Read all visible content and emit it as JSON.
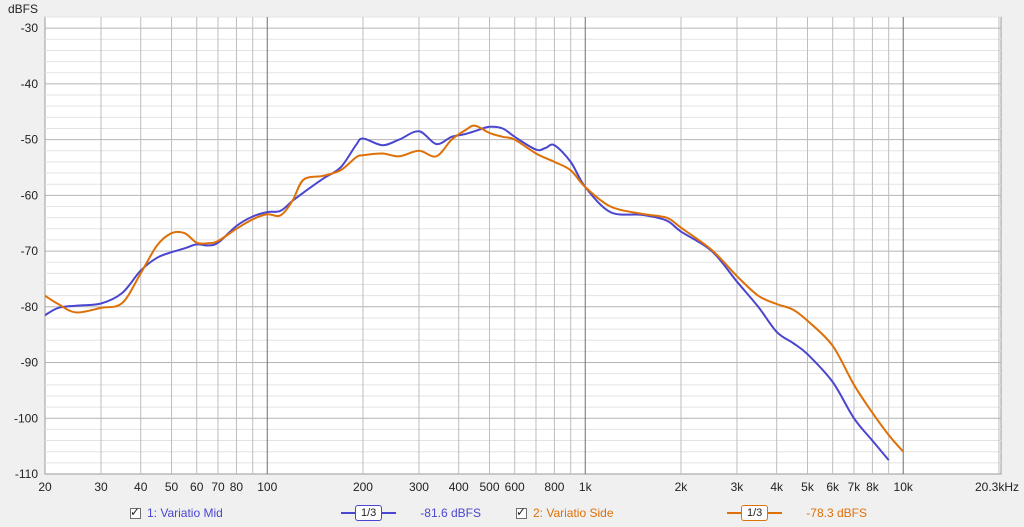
{
  "chart_data": {
    "type": "line",
    "xlabel": "",
    "ylabel": "dBFS",
    "x_scale": "log",
    "xlim": [
      20,
      20300
    ],
    "ylim": [
      -110,
      -28
    ],
    "grid": true,
    "y_ticks": [
      -30,
      -40,
      -50,
      -60,
      -70,
      -80,
      -90,
      -100,
      -110
    ],
    "x_ticks": [
      {
        "f": 20,
        "label": "20"
      },
      {
        "f": 30,
        "label": "30"
      },
      {
        "f": 40,
        "label": "40"
      },
      {
        "f": 50,
        "label": "50"
      },
      {
        "f": 60,
        "label": "60"
      },
      {
        "f": 70,
        "label": "70"
      },
      {
        "f": 80,
        "label": "80"
      },
      {
        "f": 100,
        "label": "100"
      },
      {
        "f": 200,
        "label": "200"
      },
      {
        "f": 300,
        "label": "300"
      },
      {
        "f": 400,
        "label": "400"
      },
      {
        "f": 500,
        "label": "500"
      },
      {
        "f": 600,
        "label": "600"
      },
      {
        "f": 800,
        "label": "800"
      },
      {
        "f": 1000,
        "label": "1k"
      },
      {
        "f": 2000,
        "label": "2k"
      },
      {
        "f": 3000,
        "label": "3k"
      },
      {
        "f": 4000,
        "label": "4k"
      },
      {
        "f": 5000,
        "label": "5k"
      },
      {
        "f": 6000,
        "label": "6k"
      },
      {
        "f": 7000,
        "label": "7k"
      },
      {
        "f": 8000,
        "label": "8k"
      },
      {
        "f": 10000,
        "label": "10k"
      },
      {
        "f": 20300,
        "label": "20.3kHz"
      }
    ],
    "series": [
      {
        "name": "1: Variatio Mid",
        "color": "#4a46d0",
        "x": [
          20,
          22,
          25,
          30,
          35,
          40,
          45,
          50,
          55,
          60,
          65,
          70,
          80,
          90,
          100,
          110,
          120,
          130,
          150,
          170,
          190,
          200,
          230,
          260,
          300,
          340,
          380,
          420,
          460,
          500,
          550,
          600,
          700,
          750,
          800,
          900,
          1000,
          1200,
          1500,
          1800,
          2000,
          2500,
          3000,
          3500,
          4000,
          4500,
          5000,
          6000,
          7000,
          8000,
          9000
        ],
        "y": [
          -81.5,
          -80.2,
          -79.8,
          -79.4,
          -77.5,
          -73.5,
          -71.2,
          -70.2,
          -69.5,
          -68.8,
          -69,
          -68.5,
          -65.5,
          -63.8,
          -63,
          -62.8,
          -61,
          -59.5,
          -57,
          -55,
          -51,
          -49.8,
          -51,
          -50,
          -48.5,
          -50.8,
          -49.5,
          -49,
          -48.3,
          -47.7,
          -48,
          -49.5,
          -51.8,
          -51.5,
          -51,
          -54,
          -58.5,
          -63,
          -63.5,
          -64.5,
          -66.5,
          -70,
          -75.5,
          -80,
          -84.5,
          -86.5,
          -88.5,
          -93.5,
          -100,
          -104,
          -107.5
        ]
      },
      {
        "name": "2: Variatio Side",
        "color": "#de7008",
        "x": [
          20,
          22,
          25,
          30,
          35,
          40,
          45,
          50,
          55,
          60,
          65,
          70,
          80,
          90,
          100,
          110,
          120,
          130,
          150,
          170,
          190,
          200,
          230,
          260,
          300,
          340,
          380,
          420,
          450,
          500,
          550,
          600,
          700,
          800,
          900,
          1000,
          1200,
          1500,
          1800,
          2000,
          2500,
          3000,
          3500,
          4000,
          4500,
          5000,
          6000,
          7000,
          8000,
          9000,
          10000
        ],
        "y": [
          -78,
          -79.5,
          -81,
          -80.2,
          -79.3,
          -74,
          -69,
          -66.8,
          -66.8,
          -68.5,
          -68.6,
          -68.2,
          -66,
          -64.3,
          -63.4,
          -63.6,
          -61,
          -57.2,
          -56.5,
          -55.5,
          -53.2,
          -52.8,
          -52.5,
          -53,
          -52,
          -53,
          -50,
          -48.3,
          -47.5,
          -48.8,
          -49.5,
          -50,
          -52.5,
          -54,
          -55.5,
          -58.5,
          -62,
          -63.3,
          -64,
          -65.8,
          -69.8,
          -74.5,
          -78,
          -79.5,
          -80.5,
          -82.5,
          -87,
          -94,
          -99,
          -103,
          -106
        ]
      }
    ]
  },
  "legend": {
    "series1": {
      "label": "1: Variatio Mid",
      "smoothing": "1/3",
      "level": "-81.6 dBFS",
      "checked": "✓"
    },
    "series2": {
      "label": "2: Variatio Side",
      "smoothing": "1/3",
      "level": "-78.3 dBFS",
      "checked": "✓"
    }
  }
}
